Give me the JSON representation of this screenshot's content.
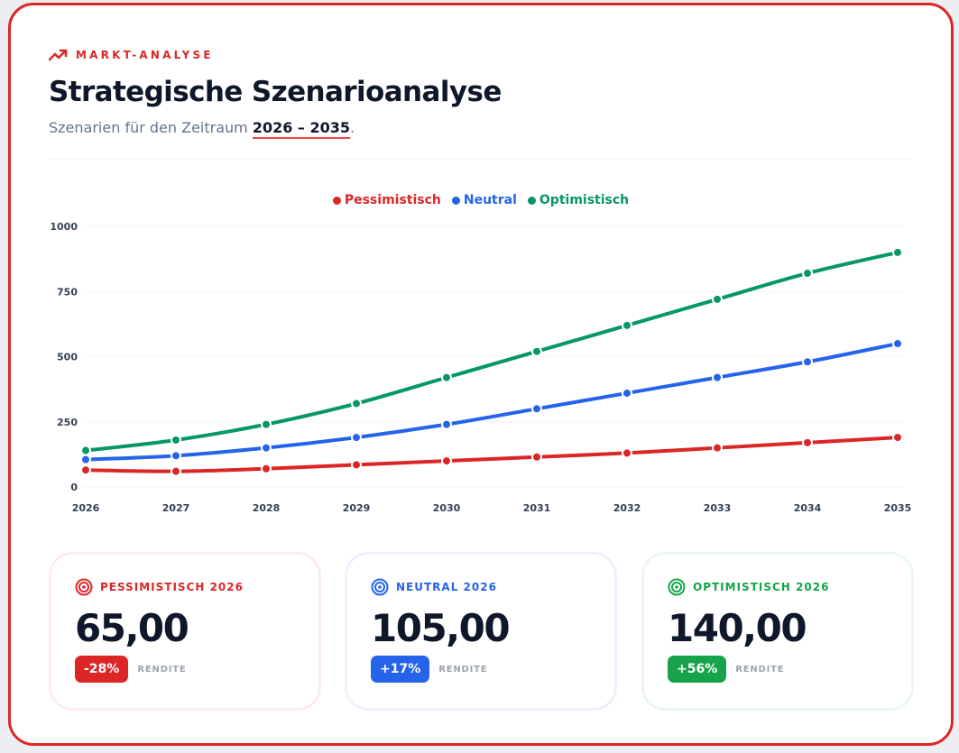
{
  "header": {
    "eyebrow": "MARKT-ANALYSE",
    "eyebrow_icon": "trending-up-icon",
    "title": "Strategische Szenarioanalyse",
    "subtitle_prefix": "Szenarien für den Zeitraum ",
    "subtitle_range": "2026 – 2035",
    "subtitle_suffix": "."
  },
  "colors": {
    "accent": "#dc2626",
    "pessimistic": "#dc2626",
    "neutral": "#2563eb",
    "optimistic": "#059669",
    "optimistic_badge": "#16a34a",
    "text_dark": "#0f172a",
    "text_muted": "#64748b"
  },
  "legend": [
    {
      "label": "Pessimistisch",
      "color": "#dc2626"
    },
    {
      "label": "Neutral",
      "color": "#2563eb"
    },
    {
      "label": "Optimistisch",
      "color": "#059669"
    }
  ],
  "chart_data": {
    "type": "line",
    "title": "",
    "xlabel": "",
    "ylabel": "",
    "categories": [
      "2026",
      "2027",
      "2028",
      "2029",
      "2030",
      "2031",
      "2032",
      "2033",
      "2034",
      "2035"
    ],
    "yticks": [
      "0",
      "250",
      "500",
      "750",
      "1000"
    ],
    "ylim": [
      0,
      1000
    ],
    "grid": true,
    "legend_position": "top",
    "series": [
      {
        "name": "Pessimistisch",
        "color": "#dc2626",
        "values": [
          65,
          60,
          70,
          85,
          100,
          115,
          130,
          150,
          170,
          190
        ]
      },
      {
        "name": "Neutral",
        "color": "#2563eb",
        "values": [
          105,
          120,
          150,
          190,
          240,
          300,
          360,
          420,
          480,
          550
        ]
      },
      {
        "name": "Optimistisch",
        "color": "#059669",
        "values": [
          140,
          180,
          240,
          320,
          420,
          520,
          620,
          720,
          820,
          900
        ]
      }
    ]
  },
  "cards": [
    {
      "title": "PESSIMISTISCH 2026",
      "value": "65,00",
      "badge": "-28%",
      "label": "RENDITE",
      "icon": "target-icon",
      "color": "#dc2626",
      "badge_color": "#dc2626",
      "border": "#fdecef"
    },
    {
      "title": "NEUTRAL 2026",
      "value": "105,00",
      "badge": "+17%",
      "label": "RENDITE",
      "icon": "target-icon",
      "color": "#2563eb",
      "badge_color": "#2563eb",
      "border": "#eef1fd"
    },
    {
      "title": "OPTIMISTISCH 2026",
      "value": "140,00",
      "badge": "+56%",
      "label": "RENDITE",
      "icon": "target-icon",
      "color": "#16a34a",
      "badge_color": "#16a34a",
      "border": "#eaf7f1"
    }
  ]
}
